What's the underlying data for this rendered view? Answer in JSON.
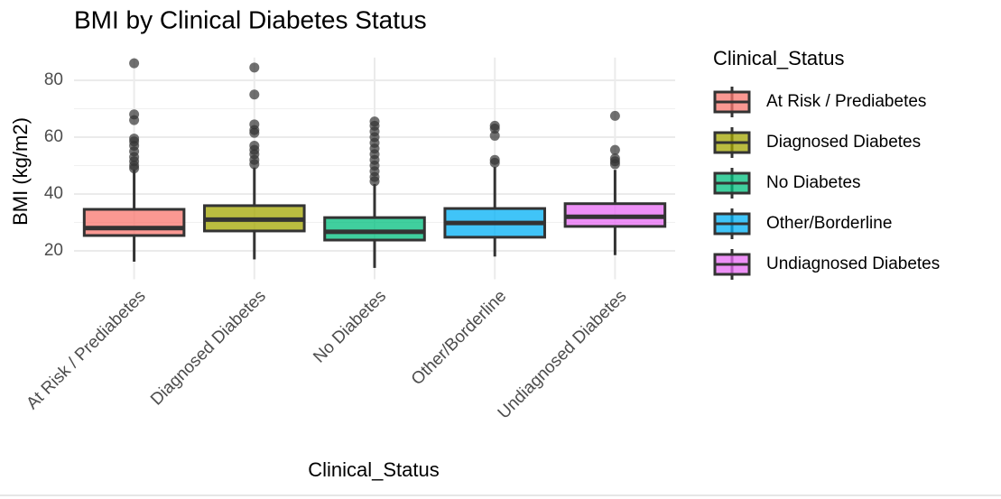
{
  "chart_data": {
    "type": "boxplot",
    "title": "BMI by Clinical Diabetes Status",
    "x_label": "Clinical_Status",
    "y_label": "BMI (kg/m2)",
    "legend_title": "Clinical_Status",
    "legend_position": "right",
    "grid": true,
    "minor_grid": true,
    "ylim": [
      10,
      88
    ],
    "yticks": [
      20,
      40,
      60,
      80
    ],
    "categories": [
      "At Risk / Prediabetes",
      "Diagnosed Diabetes",
      "No Diabetes",
      "Other/Borderline",
      "Undiagnosed Diabetes"
    ],
    "series": [
      {
        "name": "At Risk / Prediabetes",
        "color": "#F8766D",
        "whisker_low": 16.2,
        "q1": 25.4,
        "median": 28,
        "q3": 34.6,
        "whisker_high": 48.5,
        "outliers": [
          86,
          68,
          66,
          59.5,
          58.5,
          57,
          55,
          53,
          51.5,
          50,
          49
        ]
      },
      {
        "name": "Diagnosed Diabetes",
        "color": "#A3A500",
        "whisker_low": 17,
        "q1": 27,
        "median": 31,
        "q3": 35.9,
        "whisker_high": 49.3,
        "outliers": [
          84.5,
          75,
          64.5,
          62.5,
          61.5,
          57,
          55.5,
          54,
          52,
          50.5
        ]
      },
      {
        "name": "No Diabetes",
        "color": "#00BF7D",
        "whisker_low": 14,
        "q1": 23.8,
        "median": 26.7,
        "q3": 31.7,
        "whisker_high": 43.5,
        "outliers": [
          65.5,
          64,
          62,
          60,
          58,
          56,
          54,
          52,
          50,
          48,
          46,
          44.5
        ]
      },
      {
        "name": "Other/Borderline",
        "color": "#00B0F6",
        "whisker_low": 18,
        "q1": 24.8,
        "median": 29.8,
        "q3": 34.9,
        "whisker_high": 49.5,
        "outliers": [
          64,
          63,
          60.5,
          52,
          51
        ]
      },
      {
        "name": "Undiagnosed Diabetes",
        "color": "#E76BF3",
        "whisker_low": 18.5,
        "q1": 28.6,
        "median": 32,
        "q3": 36.6,
        "whisker_high": 48.5,
        "outliers": [
          67.5,
          55.5,
          52.5,
          51.5,
          50.5
        ]
      }
    ]
  }
}
